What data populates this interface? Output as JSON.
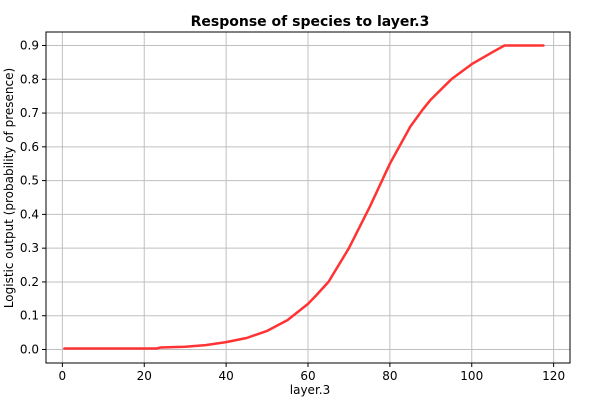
{
  "chart_data": {
    "type": "line",
    "title": "Response of species to layer.3",
    "xlabel": "layer.3",
    "ylabel": "Logistic output (probability of presence)",
    "xlim": [
      -4,
      124
    ],
    "ylim": [
      -0.04,
      0.94
    ],
    "xticks": [
      0,
      20,
      40,
      60,
      80,
      100,
      120
    ],
    "yticks": [
      0.0,
      0.1,
      0.2,
      0.3,
      0.4,
      0.5,
      0.6,
      0.7,
      0.8,
      0.9
    ],
    "xtick_labels": [
      "0",
      "20",
      "40",
      "60",
      "80",
      "100",
      "120"
    ],
    "ytick_labels": [
      "0.0",
      "0.1",
      "0.2",
      "0.3",
      "0.4",
      "0.5",
      "0.6",
      "0.7",
      "0.8",
      "0.9"
    ],
    "grid": true,
    "series": [
      {
        "color": "#ff3333",
        "x": [
          0.5,
          10,
          20,
          23,
          24,
          30,
          35,
          40,
          45,
          50,
          55,
          60,
          62,
          65,
          70,
          75,
          80,
          85,
          88,
          90,
          95,
          100,
          105,
          108,
          113,
          117.5
        ],
        "y": [
          0.003,
          0.003,
          0.003,
          0.003,
          0.006,
          0.008,
          0.013,
          0.022,
          0.034,
          0.055,
          0.087,
          0.135,
          0.16,
          0.2,
          0.3,
          0.42,
          0.55,
          0.66,
          0.71,
          0.74,
          0.8,
          0.845,
          0.88,
          0.9,
          0.9,
          0.9
        ]
      }
    ]
  }
}
